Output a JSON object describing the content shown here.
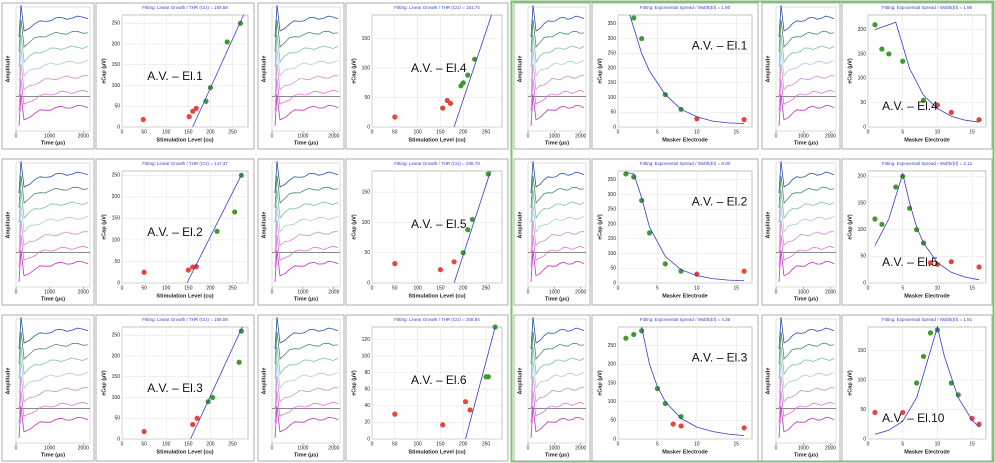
{
  "chart_data": [
    {
      "type": "waveform",
      "xlim": [
        0,
        2200
      ],
      "xticks": [
        0,
        1000,
        2000
      ],
      "xlabel": "Time (µs)",
      "ylabel": "Amplitude"
    },
    {
      "type": "scatter",
      "title": "Fitting: Linear Growth  /  THR (CU) = 159.59",
      "xlabel": "Stimulation Level (cu)",
      "ylabel": "eCap (µV)",
      "annotation": "A.V. – El.1",
      "grid": true,
      "xlim": [
        0,
        285
      ],
      "xticks": [
        0,
        50,
        100,
        150,
        200,
        250
      ],
      "ylim": [
        0,
        270
      ],
      "yticks": [
        0,
        50,
        100,
        150,
        200,
        250
      ],
      "series": [
        {
          "mode": "markers",
          "color": "#e8443a",
          "x": [
            48,
            152,
            160,
            168
          ],
          "values": [
            18,
            25,
            38,
            45
          ]
        },
        {
          "mode": "markers",
          "color": "#3e9a2c",
          "x": [
            190,
            200,
            238,
            268
          ],
          "values": [
            62,
            95,
            205,
            250
          ]
        },
        {
          "mode": "line",
          "color": "#3a3ad0",
          "x": [
            160,
            275
          ],
          "values": [
            0,
            270
          ]
        }
      ]
    },
    {
      "type": "waveform",
      "xlim": [
        0,
        2200
      ],
      "xticks": [
        0,
        1000,
        2000
      ],
      "xlabel": "Time (µs)",
      "ylabel": "Amplitude"
    },
    {
      "type": "scatter",
      "title": "Fitting: Linear Growth  /  THR (CU) = 181.74",
      "xlabel": "Stimulation Level (cu)",
      "ylabel": "eCap (µV)",
      "annotation": "A.V. – El.4",
      "grid": true,
      "xlim": [
        0,
        285
      ],
      "xticks": [
        0,
        50,
        100,
        150,
        200,
        250
      ],
      "ylim": [
        0,
        190
      ],
      "yticks": [
        0,
        50,
        100,
        150
      ],
      "series": [
        {
          "mode": "markers",
          "color": "#e8443a",
          "x": [
            50,
            155,
            165,
            172
          ],
          "values": [
            17,
            32,
            45,
            40
          ]
        },
        {
          "mode": "markers",
          "color": "#3e9a2c",
          "x": [
            195,
            200,
            210,
            225
          ],
          "values": [
            70,
            75,
            88,
            115
          ]
        },
        {
          "mode": "line",
          "color": "#3a3ad0",
          "x": [
            180,
            262
          ],
          "values": [
            0,
            190
          ]
        }
      ]
    },
    {
      "type": "waveform",
      "xlim": [
        0,
        2200
      ],
      "xticks": [
        0,
        1000,
        2000
      ],
      "xlabel": "Time (µs)",
      "ylabel": "Amplitude"
    },
    {
      "type": "scatter",
      "title": "Fitting: Linear Growth  /  THR (CU) = 147.37",
      "xlabel": "Stimulation Level (cu)",
      "ylabel": "eCap (µV)",
      "annotation": "A.V. – El.2",
      "grid": true,
      "xlim": [
        0,
        285
      ],
      "xticks": [
        0,
        50,
        100,
        150,
        200,
        250
      ],
      "ylim": [
        0,
        260
      ],
      "yticks": [
        0,
        50,
        100,
        150,
        200,
        250
      ],
      "series": [
        {
          "mode": "markers",
          "color": "#e8443a",
          "x": [
            50,
            150,
            160,
            168
          ],
          "values": [
            25,
            30,
            37,
            38
          ]
        },
        {
          "mode": "markers",
          "color": "#3e9a2c",
          "x": [
            215,
            255,
            270
          ],
          "values": [
            120,
            165,
            250
          ]
        },
        {
          "mode": "line",
          "color": "#3a3ad0",
          "x": [
            147,
            272
          ],
          "values": [
            0,
            255
          ]
        }
      ]
    },
    {
      "type": "waveform",
      "xlim": [
        0,
        2200
      ],
      "xticks": [
        0,
        1000,
        2000
      ],
      "xlabel": "Time (µs)",
      "ylabel": "Amplitude"
    },
    {
      "type": "scatter",
      "title": "Fitting: Linear Growth  /  THR (CU) = 208.78",
      "xlabel": "Stimulation Level (cu)",
      "ylabel": "eCap (µV)",
      "annotation": "A.V. – El.5",
      "grid": true,
      "xlim": [
        0,
        285
      ],
      "xticks": [
        0,
        50,
        100,
        150,
        200,
        250
      ],
      "ylim": [
        0,
        185
      ],
      "yticks": [
        0,
        50,
        100,
        150
      ],
      "series": [
        {
          "mode": "markers",
          "color": "#e8443a",
          "x": [
            50,
            150,
            180
          ],
          "values": [
            32,
            22,
            35
          ]
        },
        {
          "mode": "markers",
          "color": "#3e9a2c",
          "x": [
            200,
            210,
            220,
            255
          ],
          "values": [
            50,
            88,
            105,
            180
          ]
        },
        {
          "mode": "line",
          "color": "#3a3ad0",
          "x": [
            180,
            260
          ],
          "values": [
            0,
            185
          ]
        }
      ]
    },
    {
      "type": "waveform",
      "xlim": [
        0,
        2200
      ],
      "xticks": [
        0,
        1000,
        2000
      ],
      "xlabel": "Time (µs)",
      "ylabel": "Amplitude"
    },
    {
      "type": "scatter",
      "title": "Fitting: Linear Growth  /  THR (CU) = 158.09",
      "xlabel": "Stimulation Level (cu)",
      "ylabel": "eCap (µV)",
      "annotation": "A.V. – El.3",
      "grid": true,
      "xlim": [
        0,
        285
      ],
      "xticks": [
        0,
        50,
        100,
        150,
        200,
        250
      ],
      "ylim": [
        0,
        270
      ],
      "yticks": [
        0,
        50,
        100,
        150,
        200,
        250
      ],
      "series": [
        {
          "mode": "markers",
          "color": "#e8443a",
          "x": [
            50,
            160,
            170
          ],
          "values": [
            18,
            35,
            50
          ]
        },
        {
          "mode": "markers",
          "color": "#3e9a2c",
          "x": [
            195,
            205,
            265,
            270
          ],
          "values": [
            90,
            100,
            185,
            260
          ]
        },
        {
          "mode": "line",
          "color": "#3a3ad0",
          "x": [
            155,
            272
          ],
          "values": [
            0,
            270
          ]
        }
      ]
    },
    {
      "type": "waveform",
      "xlim": [
        0,
        2200
      ],
      "xticks": [
        0,
        1000,
        2000
      ],
      "xlabel": "Time (µs)",
      "ylabel": "Amplitude"
    },
    {
      "type": "scatter",
      "title": "Fitting: Linear Growth  /  THR (CU) = 208.84",
      "xlabel": "Stimulation Level (cu)",
      "ylabel": "eCap (µV)",
      "annotation": "A.V. – El.6",
      "grid": true,
      "xlim": [
        0,
        285
      ],
      "xticks": [
        0,
        50,
        100,
        150,
        200,
        250
      ],
      "ylim": [
        0,
        135
      ],
      "yticks": [
        0,
        20,
        40,
        60,
        80,
        100,
        120
      ],
      "series": [
        {
          "mode": "markers",
          "color": "#e8443a",
          "x": [
            50,
            155,
            205,
            215
          ],
          "values": [
            30,
            17,
            45,
            35
          ]
        },
        {
          "mode": "markers",
          "color": "#3e9a2c",
          "x": [
            250,
            255,
            270
          ],
          "values": [
            75,
            75,
            135
          ]
        },
        {
          "mode": "line",
          "color": "#3a3ad0",
          "x": [
            205,
            270
          ],
          "values": [
            0,
            135
          ]
        }
      ]
    },
    {
      "type": "waveform",
      "xlim": [
        0,
        2200
      ],
      "xticks": [
        0,
        1000,
        2000
      ],
      "xlabel": "Time (µs)",
      "ylabel": "Amplitude"
    },
    {
      "type": "scatter",
      "title": "Fitting: Exponential Spread  /  Width(El) = 1.80",
      "xlabel": "Masker Electrode",
      "ylabel": "eCap (µV)",
      "annotation": "A.V. – El.1",
      "grid": true,
      "xlim": [
        0,
        17
      ],
      "xticks": [
        0,
        5,
        10,
        15
      ],
      "ylim": [
        0,
        380
      ],
      "yticks": [
        0,
        50,
        100,
        150,
        200,
        250,
        300,
        350
      ],
      "series": [
        {
          "mode": "markers",
          "color": "#3e9a2c",
          "x": [
            2,
            3,
            6,
            8
          ],
          "values": [
            370,
            300,
            110,
            60
          ]
        },
        {
          "mode": "markers",
          "color": "#e8443a",
          "x": [
            10,
            16
          ],
          "values": [
            28,
            25
          ]
        },
        {
          "mode": "line",
          "color": "#3a3ad0",
          "x": [
            1.5,
            3,
            4,
            6,
            8,
            10,
            12,
            14,
            16
          ],
          "values": [
            380,
            250,
            190,
            110,
            60,
            35,
            20,
            14,
            12
          ]
        }
      ]
    },
    {
      "type": "waveform",
      "xlim": [
        0,
        2200
      ],
      "xticks": [
        0,
        1000,
        2000
      ],
      "xlabel": "Time (µs)",
      "ylabel": "Amplitude"
    },
    {
      "type": "scatter",
      "title": "Fitting: Exponential Spread  /  Width(El) = 1.95",
      "xlabel": "Masker Electrode",
      "ylabel": "eCap (µV)",
      "annotation": "A.V. – El.4",
      "grid": true,
      "xlim": [
        0,
        17
      ],
      "xticks": [
        0,
        5,
        10,
        15
      ],
      "ylim": [
        0,
        230
      ],
      "yticks": [
        0,
        50,
        100,
        150,
        200
      ],
      "series": [
        {
          "mode": "markers",
          "color": "#3e9a2c",
          "x": [
            1,
            2,
            3,
            5,
            8
          ],
          "values": [
            210,
            160,
            150,
            135,
            55
          ]
        },
        {
          "mode": "markers",
          "color": "#e8443a",
          "x": [
            10,
            12,
            16
          ],
          "values": [
            45,
            30,
            15
          ]
        },
        {
          "mode": "line",
          "color": "#3a3ad0",
          "x": [
            1,
            4,
            6,
            8,
            10,
            12,
            14,
            16
          ],
          "values": [
            200,
            215,
            120,
            65,
            38,
            22,
            14,
            10
          ]
        }
      ]
    },
    {
      "type": "waveform",
      "xlim": [
        0,
        2200
      ],
      "xticks": [
        0,
        1000,
        2000
      ],
      "xlabel": "Time (µs)",
      "ylabel": "Amplitude"
    },
    {
      "type": "scatter",
      "title": "Fitting: Exponential Spread  /  Width(El) = 6.00",
      "xlabel": "Masker Electrode",
      "ylabel": "eCap (µV)",
      "annotation": "A.V. – El.2",
      "grid": true,
      "xlim": [
        0,
        17
      ],
      "xticks": [
        0,
        5,
        10,
        15
      ],
      "ylim": [
        0,
        380
      ],
      "yticks": [
        0,
        50,
        100,
        150,
        200,
        250,
        300,
        350
      ],
      "series": [
        {
          "mode": "markers",
          "color": "#3e9a2c",
          "x": [
            1,
            2,
            3,
            4,
            6,
            8
          ],
          "values": [
            370,
            360,
            280,
            170,
            65,
            40
          ]
        },
        {
          "mode": "markers",
          "color": "#e8443a",
          "x": [
            10,
            16
          ],
          "values": [
            30,
            40
          ]
        },
        {
          "mode": "line",
          "color": "#3a3ad0",
          "x": [
            1,
            2,
            3,
            4,
            6,
            8,
            10,
            12,
            14,
            16
          ],
          "values": [
            375,
            370,
            290,
            190,
            90,
            45,
            25,
            15,
            10,
            8
          ]
        }
      ]
    },
    {
      "type": "waveform",
      "xlim": [
        0,
        2200
      ],
      "xticks": [
        0,
        1000,
        2000
      ],
      "xlabel": "Time (µs)",
      "ylabel": "Amplitude"
    },
    {
      "type": "scatter",
      "title": "Fitting: Exponential Spread  /  Width(El) = 2.12",
      "xlabel": "Masker Electrode",
      "ylabel": "eCap (µV)",
      "annotation": "A.V. – El.5",
      "grid": true,
      "xlim": [
        0,
        17
      ],
      "xticks": [
        0,
        5,
        10,
        15
      ],
      "ylim": [
        0,
        210
      ],
      "yticks": [
        0,
        50,
        100,
        150,
        200
      ],
      "series": [
        {
          "mode": "markers",
          "color": "#3e9a2c",
          "x": [
            1,
            2,
            4,
            5,
            6,
            7,
            8
          ],
          "values": [
            120,
            110,
            180,
            200,
            140,
            100,
            75
          ]
        },
        {
          "mode": "markers",
          "color": "#e8443a",
          "x": [
            9,
            10,
            12,
            16
          ],
          "values": [
            38,
            35,
            40,
            30
          ]
        },
        {
          "mode": "line",
          "color": "#3a3ad0",
          "x": [
            1,
            3,
            5,
            6,
            7,
            8,
            10,
            12,
            14,
            16
          ],
          "values": [
            70,
            120,
            205,
            150,
            105,
            75,
            38,
            20,
            11,
            6
          ]
        }
      ]
    },
    {
      "type": "waveform",
      "xlim": [
        0,
        2200
      ],
      "xticks": [
        0,
        1000,
        2000
      ],
      "xlabel": "Time (µs)",
      "ylabel": "Amplitude"
    },
    {
      "type": "scatter",
      "title": "Fitting: Exponential Spread  /  Width(El) = 4.35",
      "xlabel": "Masker Electrode",
      "ylabel": "eCap (µV)",
      "annotation": "A.V. – El.3",
      "grid": true,
      "xlim": [
        0,
        17
      ],
      "xticks": [
        0,
        5,
        10,
        15
      ],
      "ylim": [
        0,
        300
      ],
      "yticks": [
        0,
        50,
        100,
        150,
        200,
        250
      ],
      "series": [
        {
          "mode": "markers",
          "color": "#3e9a2c",
          "x": [
            1,
            2,
            3,
            5,
            6,
            8
          ],
          "values": [
            270,
            280,
            290,
            135,
            95,
            60
          ]
        },
        {
          "mode": "markers",
          "color": "#e8443a",
          "x": [
            7,
            8,
            16
          ],
          "values": [
            40,
            35,
            30
          ]
        },
        {
          "mode": "line",
          "color": "#3a3ad0",
          "x": [
            3,
            4,
            5,
            6,
            8,
            10,
            12,
            14,
            16
          ],
          "values": [
            300,
            200,
            140,
            100,
            55,
            32,
            20,
            13,
            9
          ]
        }
      ]
    },
    {
      "type": "waveform",
      "xlim": [
        0,
        2200
      ],
      "xticks": [
        0,
        1000,
        2000
      ],
      "xlabel": "Time (µs)",
      "ylabel": "Amplitude"
    },
    {
      "type": "scatter",
      "title": "Fitting: Exponential Spread  /  Width(El) = 1.91",
      "xlabel": "Masker Electrode",
      "ylabel": "eCap (µV)",
      "annotation": "A.V. – El.10",
      "grid": true,
      "xlim": [
        0,
        17
      ],
      "xticks": [
        0,
        5,
        10,
        15
      ],
      "ylim": [
        0,
        190
      ],
      "yticks": [
        0,
        50,
        100,
        150
      ],
      "series": [
        {
          "mode": "markers",
          "color": "#e8443a",
          "x": [
            1,
            5,
            15,
            16
          ],
          "values": [
            45,
            45,
            35,
            25
          ]
        },
        {
          "mode": "markers",
          "color": "#3e9a2c",
          "x": [
            7,
            8,
            9,
            10,
            12,
            13
          ],
          "values": [
            95,
            140,
            180,
            185,
            95,
            75
          ]
        },
        {
          "mode": "line",
          "color": "#3a3ad0",
          "x": [
            1,
            3,
            5,
            7,
            9,
            10,
            11,
            13,
            15,
            16
          ],
          "values": [
            8,
            15,
            30,
            70,
            150,
            190,
            140,
            70,
            32,
            20
          ]
        }
      ]
    }
  ]
}
